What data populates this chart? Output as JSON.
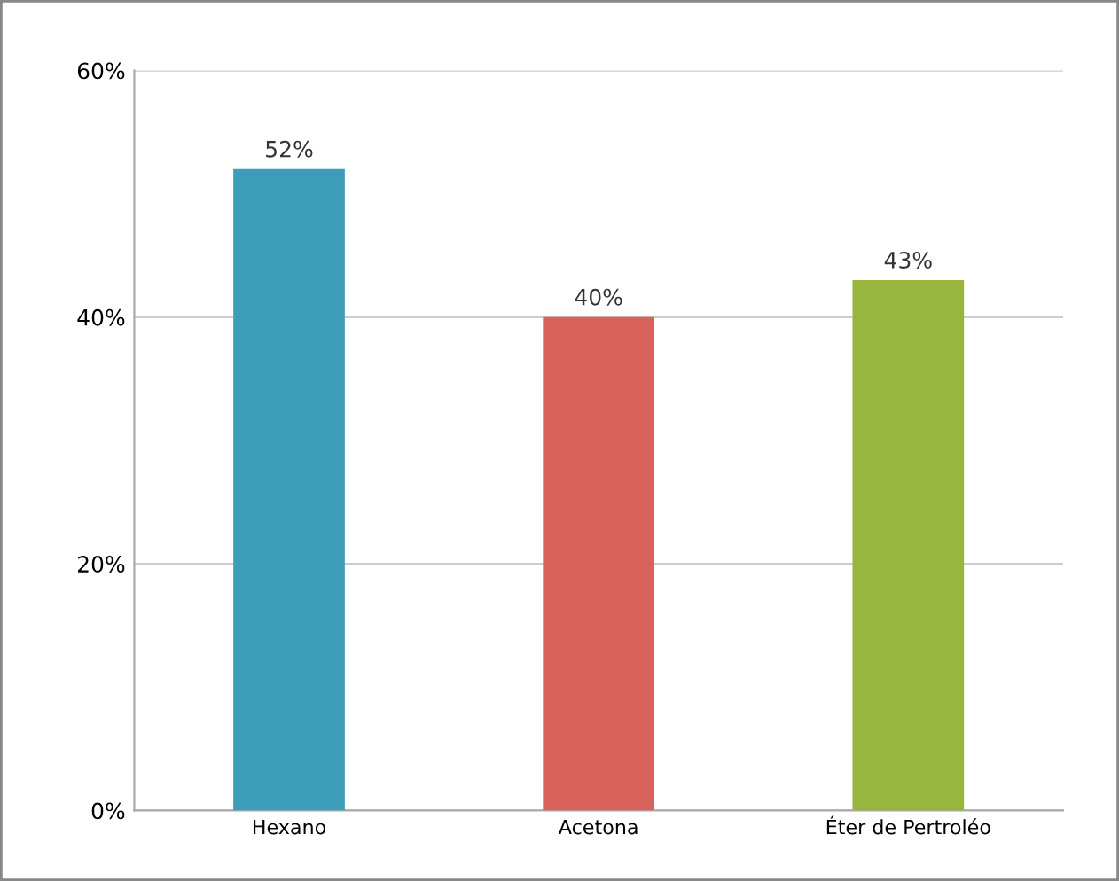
{
  "chart_data": {
    "type": "bar",
    "categories": [
      "Hexano",
      "Acetona",
      "Éter de Pertroléo"
    ],
    "values": [
      52,
      40,
      43
    ],
    "colors": [
      "#3d9cb8",
      "#d9625b",
      "#98b53d"
    ],
    "value_labels": [
      "52%",
      "40%",
      "43%"
    ],
    "ylim": [
      0,
      60
    ],
    "yticks": [
      {
        "value": 0,
        "label": "0%"
      },
      {
        "value": 20,
        "label": "20%"
      },
      {
        "value": 40,
        "label": "40%"
      },
      {
        "value": 60,
        "label": "60%"
      }
    ],
    "grid": "y",
    "legend": false
  }
}
